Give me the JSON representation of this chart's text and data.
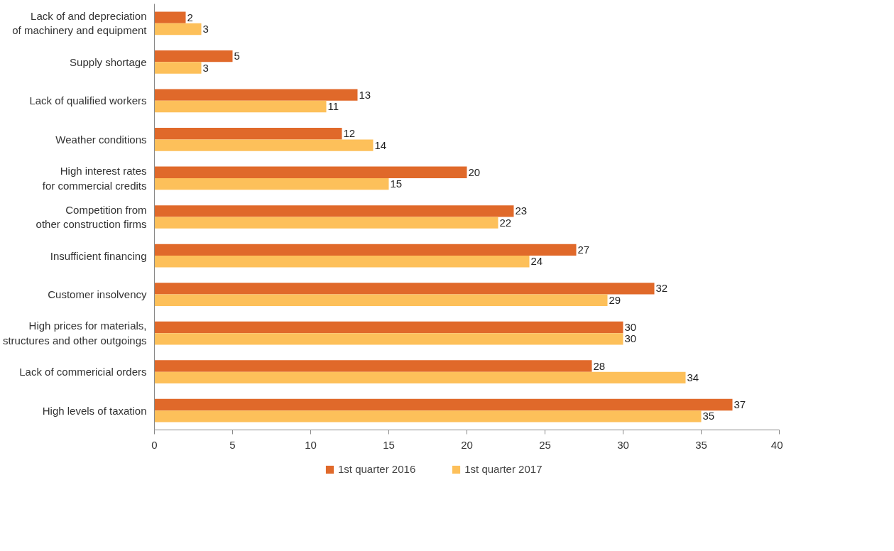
{
  "chart_data": {
    "type": "bar",
    "orientation": "horizontal",
    "categories": [
      "Lack of and depreciation\nof machinery and equipment",
      "Supply shortage",
      "Lack of qualified workers",
      "Weather conditions",
      "High interest rates\nfor commercial credits",
      "Competition from\nother construction firms",
      "Insufficient financing",
      "Customer insolvency",
      "High prices for materials,\nstructures and other outgoings",
      "Lack of commericial orders",
      "High levels of taxation"
    ],
    "series": [
      {
        "name": "1st quarter 2016",
        "color": "#e0692a",
        "values": [
          2,
          5,
          13,
          12,
          20,
          23,
          27,
          32,
          30,
          28,
          37
        ]
      },
      {
        "name": "1st quarter 2017",
        "color": "#fdc05a",
        "values": [
          3,
          3,
          11,
          14,
          15,
          22,
          24,
          29,
          30,
          34,
          35
        ]
      }
    ],
    "xlim": [
      0,
      40
    ],
    "xticks": [
      0,
      5,
      10,
      15,
      20,
      25,
      30,
      35,
      40
    ],
    "grid": false,
    "legend": "bottom",
    "data_labels": true
  }
}
